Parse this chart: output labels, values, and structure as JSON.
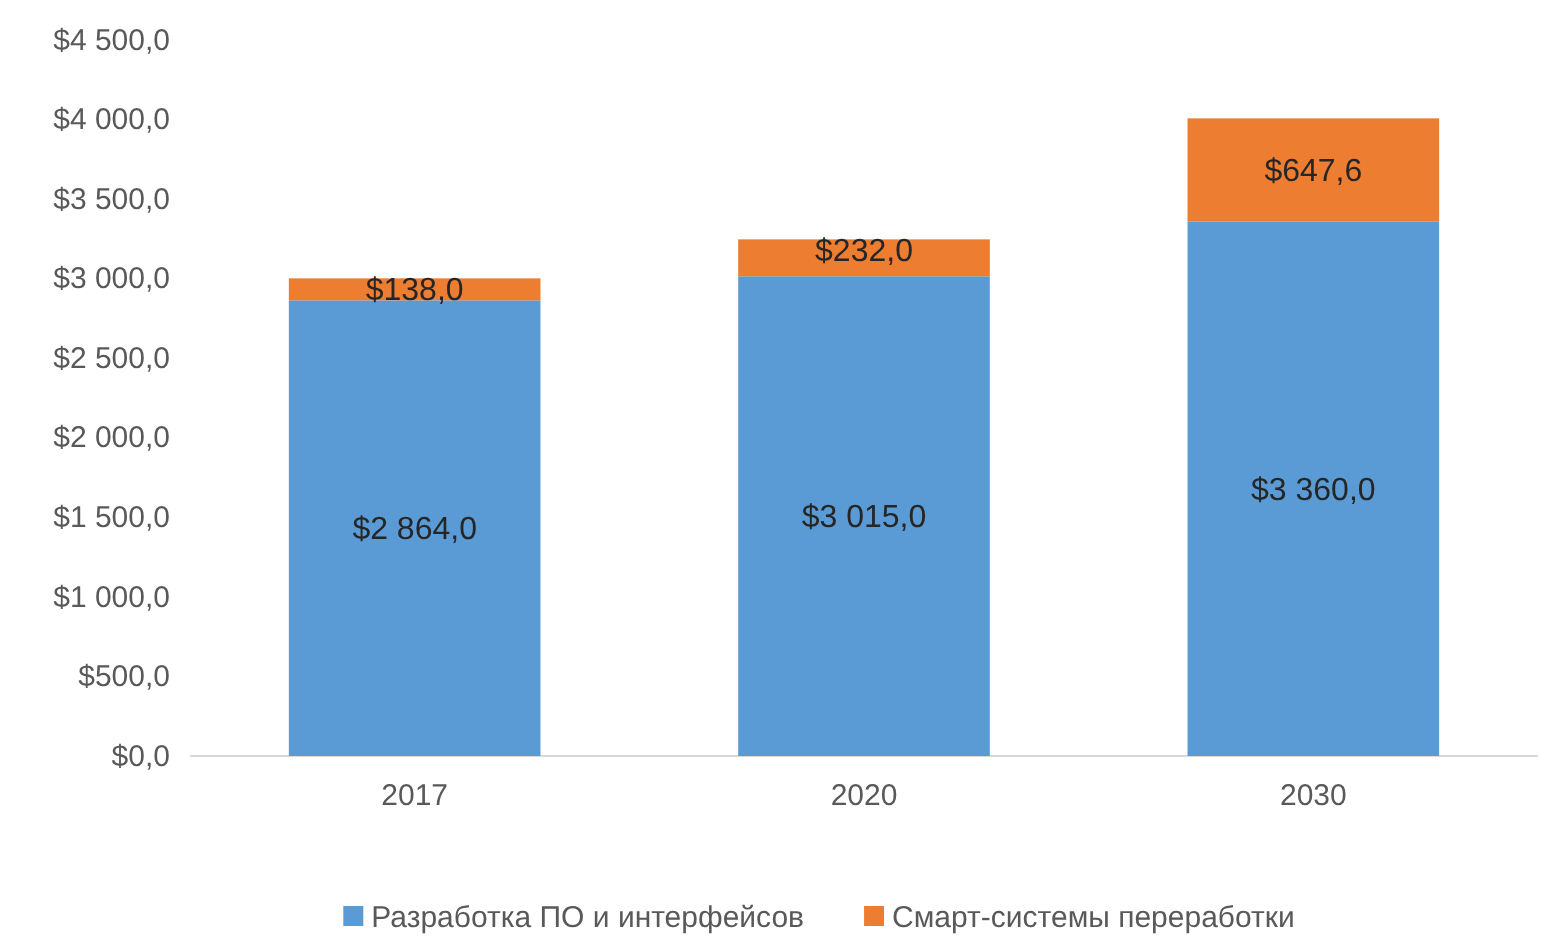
{
  "chart_data": {
    "type": "bar",
    "stacked": true,
    "categories": [
      "2017",
      "2020",
      "2030"
    ],
    "series": [
      {
        "name": "Разработка ПО и интерфейсов",
        "color": "#5b9bd5",
        "values": [
          2864,
          3015,
          3360
        ],
        "value_labels": [
          "$2 864,0",
          "$3 015,0",
          "$3 360,0"
        ]
      },
      {
        "name": "Смарт-системы переработки",
        "color": "#ed7d31",
        "values": [
          138,
          232,
          647.6
        ],
        "value_labels": [
          "$138,0",
          "$232,0",
          "$647,6"
        ]
      }
    ],
    "ylim": [
      0,
      4500
    ],
    "yticks": [
      {
        "value": 0,
        "label": "$0,0"
      },
      {
        "value": 500,
        "label": "$500,0"
      },
      {
        "value": 1000,
        "label": "$1 000,0"
      },
      {
        "value": 1500,
        "label": "$1 500,0"
      },
      {
        "value": 2000,
        "label": "$2 000,0"
      },
      {
        "value": 2500,
        "label": "$2 500,0"
      },
      {
        "value": 3000,
        "label": "$3 000,0"
      },
      {
        "value": 3500,
        "label": "$3 500,0"
      },
      {
        "value": 4000,
        "label": "$4 000,0"
      },
      {
        "value": 4500,
        "label": "$4 500,0"
      }
    ],
    "grid": false,
    "legend": "bottom"
  }
}
